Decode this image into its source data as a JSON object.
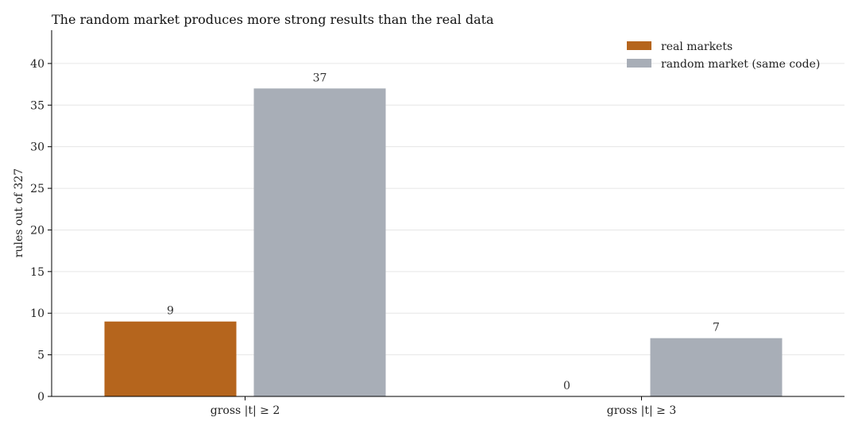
{
  "chart_data": {
    "type": "bar",
    "title": "The random market produces more strong results than the real data",
    "xlabel": "",
    "ylabel": "rules out of 327",
    "categories": [
      "gross |t| ≥ 2",
      "gross |t| ≥ 3"
    ],
    "series": [
      {
        "name": "real markets",
        "color": "#b5651d",
        "values": [
          9,
          0
        ]
      },
      {
        "name": "random market (same code)",
        "color": "#a8aeb7",
        "values": [
          37,
          7
        ]
      }
    ],
    "ylim": [
      0,
      44
    ],
    "yticks": [
      0,
      5,
      10,
      15,
      20,
      25,
      30,
      35,
      40
    ],
    "grid": true,
    "legend_position": "top-right"
  }
}
